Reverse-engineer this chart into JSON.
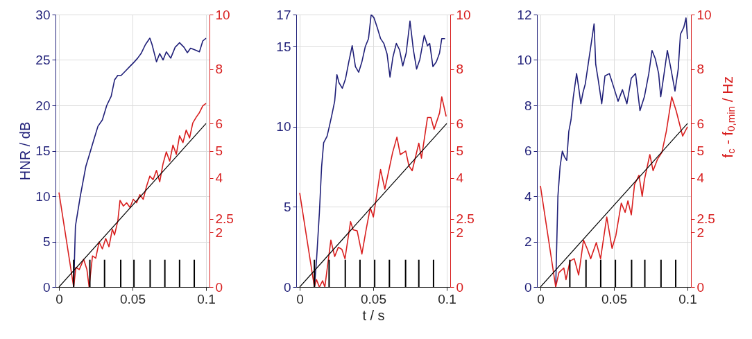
{
  "chart_data": [
    {
      "type": "line",
      "ylabel": "HNR / dB",
      "xlim": [
        0,
        0.1
      ],
      "xticks": [
        0,
        0.05,
        0.1
      ],
      "ylim": [
        0,
        30
      ],
      "yticks": [
        0,
        5,
        10,
        15,
        20,
        25,
        30
      ],
      "y2lim": [
        0,
        10
      ],
      "y2ticks": [
        0,
        2,
        2.5,
        4,
        5,
        6,
        8,
        10
      ],
      "grid": true,
      "series": [
        {
          "color": "#1f1f78",
          "x": [
            0.01,
            0.0112,
            0.0145,
            0.0183,
            0.0213,
            0.0235,
            0.0265,
            0.0295,
            0.0325,
            0.0355,
            0.0378,
            0.04,
            0.0423,
            0.0453,
            0.0483,
            0.0513,
            0.0535,
            0.0558,
            0.0588,
            0.0618,
            0.0633,
            0.0663,
            0.0685,
            0.0708,
            0.073,
            0.076,
            0.079,
            0.082,
            0.085,
            0.0873,
            0.0895,
            0.0925,
            0.0955,
            0.0978,
            0.1
          ],
          "values": [
            0,
            6.7,
            10.0,
            13.3,
            14.9,
            16.1,
            17.7,
            18.4,
            20.0,
            21.0,
            22.8,
            23.3,
            23.3,
            23.8,
            24.3,
            24.8,
            25.2,
            25.7,
            26.7,
            27.4,
            26.7,
            24.8,
            25.7,
            25.0,
            25.9,
            25.2,
            26.4,
            26.9,
            26.4,
            25.8,
            26.3,
            26.1,
            25.9,
            27.1,
            27.4
          ]
        },
        {
          "color": "#d81e1e",
          "axis": "y2",
          "x": [
            0,
            0.01,
            0.0115,
            0.0138,
            0.0168,
            0.019,
            0.0205,
            0.0228,
            0.025,
            0.0273,
            0.0295,
            0.0318,
            0.034,
            0.0363,
            0.0378,
            0.04,
            0.0415,
            0.0438,
            0.046,
            0.0483,
            0.0505,
            0.0528,
            0.055,
            0.0573,
            0.0595,
            0.0618,
            0.064,
            0.0663,
            0.0685,
            0.0708,
            0.073,
            0.0753,
            0.0775,
            0.0798,
            0.082,
            0.0843,
            0.0865,
            0.0888,
            0.091,
            0.0933,
            0.0955,
            0.0978,
            0.1
          ],
          "values": [
            3.47,
            0,
            0.72,
            0.64,
            1.02,
            0.64,
            0,
            1.14,
            1.06,
            1.65,
            1.4,
            1.78,
            1.48,
            2.12,
            1.91,
            2.42,
            3.18,
            2.97,
            3.09,
            2.92,
            3.22,
            3.09,
            3.39,
            3.22,
            3.69,
            4.07,
            3.94,
            4.28,
            3.86,
            4.53,
            4.96,
            4.62,
            5.21,
            4.87,
            5.55,
            5.3,
            5.76,
            5.47,
            6.02,
            6.23,
            6.4,
            6.65,
            6.74
          ]
        },
        {
          "type": "line",
          "color": "#000000",
          "axis": "y2",
          "x": [
            0,
            0.1
          ],
          "values": [
            0,
            6
          ]
        },
        {
          "type": "bar",
          "color": "#000000",
          "axis": "y2",
          "x": [
            0.01,
            0.021,
            0.031,
            0.042,
            0.051,
            0.062,
            0.072,
            0.082,
            0.092
          ],
          "values": [
            1,
            1,
            1,
            1,
            1,
            1,
            1,
            1,
            1
          ]
        }
      ]
    },
    {
      "type": "line",
      "xlabel": "t / s",
      "xlim": [
        0,
        0.1
      ],
      "xticks": [
        0,
        0.05,
        0.1
      ],
      "ylim": [
        0,
        17
      ],
      "yticks": [
        0,
        5,
        10,
        15,
        17
      ],
      "y2lim": [
        0,
        10
      ],
      "y2ticks": [
        0,
        2,
        2.5,
        4,
        5,
        6,
        8,
        10
      ],
      "grid": true,
      "series": [
        {
          "color": "#1f1f78",
          "x": [
            0.01,
            0.0114,
            0.0134,
            0.0149,
            0.0163,
            0.0186,
            0.0201,
            0.0218,
            0.0238,
            0.0253,
            0.0267,
            0.029,
            0.0312,
            0.0334,
            0.0357,
            0.0379,
            0.0401,
            0.0423,
            0.0446,
            0.0468,
            0.0486,
            0.0505,
            0.0527,
            0.055,
            0.0572,
            0.0594,
            0.0614,
            0.0634,
            0.0657,
            0.0679,
            0.0701,
            0.0724,
            0.075,
            0.0773,
            0.0795,
            0.0817,
            0.0847,
            0.0869,
            0.0884,
            0.0906,
            0.0929,
            0.0951,
            0.0966,
            0.0988
          ],
          "values": [
            0,
            1.6,
            4.65,
            7.5,
            9.0,
            9.4,
            10.0,
            10.7,
            11.6,
            13.25,
            12.75,
            12.4,
            13.0,
            14.05,
            15.06,
            13.75,
            13.4,
            14.05,
            15.0,
            15.5,
            17.0,
            16.8,
            16.2,
            15.5,
            15.2,
            14.55,
            13.1,
            14.35,
            15.2,
            14.8,
            13.8,
            14.6,
            16.6,
            14.8,
            13.6,
            14.2,
            15.7,
            15.05,
            15.2,
            13.75,
            14.05,
            14.6,
            15.5,
            15.5
          ]
        },
        {
          "color": "#d81e1e",
          "axis": "y2",
          "x": [
            0,
            0.01,
            0.0114,
            0.0134,
            0.0156,
            0.0171,
            0.0212,
            0.0238,
            0.0263,
            0.0287,
            0.0308,
            0.0346,
            0.0364,
            0.0391,
            0.0423,
            0.0453,
            0.048,
            0.0501,
            0.055,
            0.0579,
            0.0632,
            0.0661,
            0.0684,
            0.0721,
            0.0743,
            0.0765,
            0.081,
            0.0828,
            0.0869,
            0.0892,
            0.0914,
            0.0951,
            0.0966,
            0.0996
          ],
          "values": [
            3.46,
            0,
            0.27,
            0,
            0.23,
            0,
            1.72,
            1.12,
            1.46,
            1.38,
            1.04,
            2.4,
            2.1,
            2.06,
            1.21,
            2.14,
            2.91,
            2.57,
            4.31,
            3.59,
            4.94,
            5.5,
            4.86,
            4.99,
            4.44,
            4.27,
            5.28,
            4.73,
            6.22,
            6.22,
            5.79,
            6.39,
            6.98,
            6.26
          ]
        },
        {
          "type": "line",
          "color": "#000000",
          "axis": "y2",
          "x": [
            0,
            0.1
          ],
          "values": [
            0,
            6
          ]
        },
        {
          "type": "bar",
          "color": "#000000",
          "axis": "y2",
          "x": [
            0.01,
            0.02,
            0.031,
            0.041,
            0.051,
            0.061,
            0.072,
            0.081,
            0.091
          ],
          "values": [
            1,
            1,
            1,
            1,
            1,
            1,
            1,
            1,
            1
          ]
        }
      ]
    },
    {
      "type": "line",
      "y2label": "f$_{c}$ - f$_{0,min}$ / Hz",
      "xlim": [
        0,
        0.1
      ],
      "xticks": [
        0,
        0.05,
        0.1
      ],
      "ylim": [
        0,
        12
      ],
      "yticks": [
        0,
        2,
        4,
        6,
        8,
        10,
        12
      ],
      "y2lim": [
        0,
        10
      ],
      "y2ticks": [
        0,
        2,
        2.5,
        4,
        5,
        6,
        8,
        10
      ],
      "grid": true,
      "series": [
        {
          "color": "#1f1f78",
          "x": [
            0.0104,
            0.0119,
            0.0134,
            0.0149,
            0.0164,
            0.0179,
            0.0193,
            0.0208,
            0.0223,
            0.0246,
            0.026,
            0.0275,
            0.029,
            0.0305,
            0.0327,
            0.035,
            0.0365,
            0.0376,
            0.0394,
            0.0417,
            0.0439,
            0.0469,
            0.0499,
            0.0528,
            0.0558,
            0.0588,
            0.0618,
            0.0647,
            0.0677,
            0.0707,
            0.0737,
            0.0759,
            0.0781,
            0.0804,
            0.0818,
            0.0841,
            0.0863,
            0.0885,
            0.0915,
            0.0937,
            0.0952,
            0.0975,
            0.099,
            0.1
          ],
          "values": [
            0,
            4.0,
            5.32,
            5.98,
            5.73,
            5.58,
            6.85,
            7.36,
            8.33,
            9.4,
            8.79,
            8.07,
            8.58,
            8.94,
            9.91,
            10.93,
            11.59,
            9.81,
            9.09,
            8.07,
            9.3,
            9.4,
            8.79,
            8.18,
            8.69,
            8.07,
            9.2,
            9.4,
            7.77,
            8.38,
            9.4,
            10.42,
            10.06,
            9.4,
            8.38,
            9.4,
            10.42,
            9.7,
            8.63,
            9.6,
            11.13,
            11.44,
            11.85,
            10.93
          ]
        },
        {
          "color": "#d81e1e",
          "axis": "y2",
          "x": [
            0,
            0.0104,
            0.0126,
            0.0159,
            0.0174,
            0.0201,
            0.023,
            0.026,
            0.0293,
            0.032,
            0.0342,
            0.038,
            0.0409,
            0.0451,
            0.0487,
            0.0513,
            0.055,
            0.0576,
            0.0595,
            0.0618,
            0.064,
            0.067,
            0.0692,
            0.0707,
            0.0744,
            0.0766,
            0.0796,
            0.0826,
            0.0856,
            0.0893,
            0.0923,
            0.0967,
            0.1
          ],
          "values": [
            3.71,
            0,
            0.53,
            0.7,
            0.27,
            0.95,
            1.04,
            0.44,
            1.72,
            1.38,
            1.04,
            1.63,
            1.04,
            2.57,
            1.42,
            1.89,
            3.08,
            2.74,
            3.16,
            2.65,
            3.76,
            4.1,
            3.33,
            3.93,
            4.86,
            4.27,
            4.69,
            4.94,
            5.71,
            6.98,
            6.47,
            5.54,
            5.88
          ]
        },
        {
          "type": "line",
          "color": "#000000",
          "axis": "y2",
          "x": [
            0,
            0.1
          ],
          "values": [
            0,
            6
          ]
        },
        {
          "type": "bar",
          "color": "#000000",
          "axis": "y2",
          "x": [
            0.02,
            0.031,
            0.041,
            0.051,
            0.062,
            0.071,
            0.082,
            0.092
          ],
          "values": [
            1,
            1,
            1,
            1,
            1,
            1,
            1,
            1
          ]
        }
      ]
    }
  ]
}
